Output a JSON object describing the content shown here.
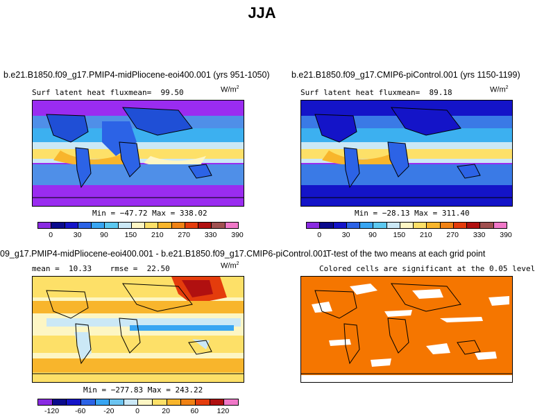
{
  "page_title": "JJA",
  "colors": {
    "sig_orange": "#f57600",
    "ocean_deep": "#9a2cf0"
  },
  "chart_data": [
    {
      "type": "heatmap",
      "title": "b.e21.B1850.f09_g17.PMIP4-midPliocene-eoi400.001 (yrs 951-1050)",
      "subtitle": "Surf latent heat flux",
      "stat_label": "mean=",
      "stat_value": "99.50",
      "units": "W/m",
      "units_exp": "2",
      "minmax_text": "Min = −47.72 Max = 338.02",
      "colorbar": {
        "ticks": [
          "0",
          "30",
          "90",
          "150",
          "210",
          "270",
          "330",
          "390"
        ],
        "colors": [
          "#8a2be2",
          "#0a0a8c",
          "#1414c8",
          "#2c63e6",
          "#38a5f2",
          "#5cc8f0",
          "#cbe8f6",
          "#fdf6c4",
          "#fde068",
          "#f8b52c",
          "#f08214",
          "#e43c0c",
          "#b01010",
          "#a05050",
          "#f078c8"
        ]
      }
    },
    {
      "type": "heatmap",
      "title": "b.e21.B1850.f09_g17.CMIP6-piControl.001 (yrs 1150-1199)",
      "subtitle": "Surf latent heat flux",
      "stat_label": "mean=",
      "stat_value": "89.18",
      "units": "W/m",
      "units_exp": "2",
      "minmax_text": "Min = −28.13 Max = 311.40",
      "colorbar": {
        "ticks": [
          "0",
          "30",
          "90",
          "150",
          "210",
          "270",
          "330",
          "390"
        ],
        "colors": [
          "#8a2be2",
          "#0a0a8c",
          "#1414c8",
          "#2c63e6",
          "#38a5f2",
          "#5cc8f0",
          "#cbe8f6",
          "#fdf6c4",
          "#fde068",
          "#f8b52c",
          "#f08214",
          "#e43c0c",
          "#b01010",
          "#a05050",
          "#f078c8"
        ]
      }
    },
    {
      "type": "heatmap",
      "title": "09_g17.PMIP4-midPliocene-eoi400.001 - b.e21.B1850.f09_g17.CMIP6-piControl.001",
      "stat_label": "mean =",
      "stat_value": "10.33",
      "rmse_label": "rmse =",
      "rmse_value": "22.50",
      "units": "W/m",
      "units_exp": "2",
      "minmax_text": "Min = −277.83 Max = 243.22",
      "colorbar": {
        "ticks": [
          "-120",
          "-60",
          "-20",
          "0",
          "20",
          "60",
          "120"
        ],
        "colors": [
          "#8a2be2",
          "#0a0a8c",
          "#1414c8",
          "#2c63e6",
          "#38a5f2",
          "#6cc4f0",
          "#cbe8f6",
          "#fdf6c4",
          "#fde068",
          "#f8b52c",
          "#f08214",
          "#e43c0c",
          "#b01010",
          "#f078c8"
        ]
      }
    },
    {
      "type": "heatmap",
      "title": "T-test of the two means at each grid point",
      "subtitle": "Colored cells are significant at the 0.05 level"
    }
  ]
}
